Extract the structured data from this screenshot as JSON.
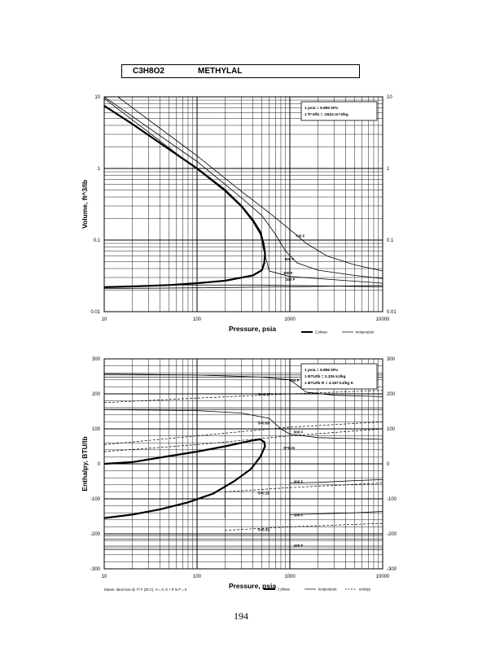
{
  "header": {
    "formula": "C3H8O2",
    "name": "METHYLAL"
  },
  "page_number": "194",
  "chart_data": [
    {
      "type": "line",
      "xscale": "log",
      "yscale": "log",
      "xlim": [
        10,
        10000
      ],
      "ylim": [
        0.01,
        10
      ],
      "xlabel": "Pressure, psia",
      "ylabel": "Volume, ft^3/lb",
      "x_ticks": [
        "10",
        "100",
        "1000",
        "10000"
      ],
      "y_ticks": [
        "0.01",
        "0.1",
        "1",
        "10"
      ],
      "info_box": [
        "1 psia = 6.895 kPa",
        "1 ft^3/lb = .0624 m^3/kg"
      ],
      "legend": [
        "2 phase",
        "temperature"
      ],
      "series": [
        {
          "name": "2 phase",
          "style": "thick",
          "points": [
            [
              10,
              7.5
            ],
            [
              20,
              4.2
            ],
            [
              50,
              1.85
            ],
            [
              100,
              1.0
            ],
            [
              200,
              0.5
            ],
            [
              300,
              0.3
            ],
            [
              400,
              0.19
            ],
            [
              480,
              0.13
            ],
            [
              520,
              0.09
            ],
            [
              540,
              0.065
            ],
            [
              530,
              0.048
            ],
            [
              500,
              0.038
            ],
            [
              400,
              0.032
            ],
            [
              200,
              0.027
            ],
            [
              100,
              0.025
            ],
            [
              50,
              0.0235
            ],
            [
              20,
              0.0225
            ],
            [
              10,
              0.022
            ]
          ]
        },
        {
          "name": "",
          "style": "thin",
          "points": [
            [
              10,
              0.021
            ],
            [
              100,
              0.0215
            ],
            [
              1000,
              0.0222
            ],
            [
              10000,
              0.0232
            ]
          ]
        },
        {
          "name": "",
          "style": "vline",
          "points": [
            [
              200,
              0.5
            ],
            [
              200,
              0.027
            ]
          ]
        },
        {
          "label": "100 F",
          "style": "thin",
          "points": [
            [
              50,
              0.0236
            ],
            [
              500,
              0.0235
            ],
            [
              1000,
              0.0232
            ],
            [
              10000,
              0.0222
            ]
          ]
        },
        {
          "label": "300 F",
          "style": "thin",
          "points": [
            [
              10,
              9.5
            ],
            [
              100,
              0.98
            ],
            [
              200,
              0.48
            ],
            [
              300,
              0.29
            ],
            [
              400,
              0.18
            ],
            [
              480,
              0.12
            ],
            [
              520,
              0.075
            ],
            [
              600,
              0.037
            ],
            [
              1000,
              0.031
            ],
            [
              10000,
              0.025
            ]
          ]
        },
        {
          "label": "500 F",
          "style": "thin",
          "points": [
            [
              10,
              10
            ],
            [
              100,
              1.25
            ],
            [
              300,
              0.39
            ],
            [
              500,
              0.22
            ],
            [
              700,
              0.12
            ],
            [
              900,
              0.07
            ],
            [
              1200,
              0.048
            ],
            [
              2000,
              0.038
            ],
            [
              5000,
              0.032
            ],
            [
              10000,
              0.029
            ]
          ]
        },
        {
          "label": "700 F",
          "style": "thin",
          "points": [
            [
              14,
              10
            ],
            [
              100,
              1.5
            ],
            [
              300,
              0.48
            ],
            [
              600,
              0.24
            ],
            [
              1000,
              0.14
            ],
            [
              1500,
              0.09
            ],
            [
              2500,
              0.06
            ],
            [
              5000,
              0.045
            ],
            [
              10000,
              0.037
            ]
          ]
        }
      ],
      "curve_labels": [
        {
          "text": "700 F",
          "x": 1150,
          "y": 0.115
        },
        {
          "text": "500 F",
          "x": 880,
          "y": 0.055
        },
        {
          "text": "300 F",
          "x": 850,
          "y": 0.035
        },
        {
          "text": "100 F",
          "x": 900,
          "y": 0.0285
        }
      ]
    },
    {
      "type": "line",
      "xscale": "log",
      "yscale": "linear",
      "xlim": [
        10,
        10000
      ],
      "ylim": [
        -300,
        300
      ],
      "xlabel": "Pressure, psia",
      "ylabel": "Enthalpy, BTU/lb",
      "x_ticks": [
        "10",
        "100",
        "1000",
        "10000"
      ],
      "y_ticks": [
        "300",
        "200",
        "100",
        "0",
        "-100",
        "-200",
        "-300"
      ],
      "info_box": [
        "1 psia = 6.895 kPa",
        "1 BTU/lb = 2.326 kJ/kg",
        "1 BTU/lb R = 4.187 kJ/kg K"
      ],
      "footnote": "Datum: Ideal Gas @ 77 F (25 C), H = 0, S + R ln P = 0",
      "legend": [
        "2 phase",
        "temperature",
        "entropy"
      ],
      "series": [
        {
          "name": "2 phase",
          "style": "thick",
          "points": [
            [
              10,
              0
            ],
            [
              20,
              5
            ],
            [
              50,
              22
            ],
            [
              100,
              35
            ],
            [
              200,
              50
            ],
            [
              300,
              60
            ],
            [
              400,
              67
            ],
            [
              480,
              70
            ],
            [
              530,
              62
            ],
            [
              540,
              50
            ],
            [
              480,
              20
            ],
            [
              380,
              -15
            ],
            [
              250,
              -50
            ],
            [
              150,
              -85
            ],
            [
              80,
              -110
            ],
            [
              40,
              -130
            ],
            [
              20,
              -145
            ],
            [
              10,
              -155
            ]
          ]
        },
        {
          "name": "",
          "style": "vline",
          "points": [
            [
              10,
              0
            ],
            [
              10,
              -155
            ]
          ]
        },
        {
          "name": "",
          "style": "vline",
          "points": [
            [
              200,
              50
            ],
            [
              200,
              -155
            ]
          ]
        },
        {
          "label": "700 F",
          "style": "thin",
          "points": [
            [
              10,
              257
            ],
            [
              100,
              254
            ],
            [
              500,
              248
            ],
            [
              1000,
              240
            ],
            [
              1200,
              225
            ],
            [
              1500,
              205
            ],
            [
              3000,
              196
            ],
            [
              10000,
              192
            ]
          ]
        },
        {
          "label": "500 F",
          "style": "thin",
          "points": [
            [
              10,
              155
            ],
            [
              100,
              152
            ],
            [
              300,
              145
            ],
            [
              600,
              130
            ],
            [
              800,
              100
            ],
            [
              1000,
              85
            ],
            [
              2000,
              75
            ],
            [
              10000,
              70
            ]
          ]
        },
        {
          "label": "300 F",
          "style": "thin",
          "points": [
            [
              1000,
              -55
            ],
            [
              2000,
              -53
            ],
            [
              5000,
              -48
            ],
            [
              10000,
              -45
            ]
          ]
        },
        {
          "label": "100 F",
          "style": "thin",
          "points": [
            [
              1000,
              -145
            ],
            [
              2000,
              -143
            ],
            [
              5000,
              -140
            ],
            [
              10000,
              -136
            ]
          ]
        },
        {
          "label": "S=-0.17",
          "style": "dashed",
          "points": [
            [
              10,
              175
            ],
            [
              100,
              188
            ],
            [
              1000,
              200
            ],
            [
              10000,
              210
            ]
          ]
        },
        {
          "label": "S=0.09",
          "style": "dashed",
          "points": [
            [
              10,
              55
            ],
            [
              100,
              80
            ],
            [
              1000,
              105
            ],
            [
              10000,
              120
            ]
          ]
        },
        {
          "label": "S=0.01",
          "style": "dashed",
          "points": [
            [
              10,
              35
            ],
            [
              100,
              55
            ],
            [
              1000,
              80
            ],
            [
              10000,
              100
            ]
          ]
        },
        {
          "label": "S=0.15",
          "style": "dashed",
          "points": [
            [
              200,
              -80
            ],
            [
              1000,
              -68
            ],
            [
              10000,
              -55
            ]
          ]
        },
        {
          "label": "S=0.32",
          "style": "dashed",
          "points": [
            [
              200,
              -190
            ],
            [
              1000,
              -180
            ],
            [
              10000,
              -170
            ]
          ]
        }
      ],
      "h_lines": [
        254,
        248,
        160,
        155,
        -205,
        -215,
        -235,
        -245
      ],
      "curve_labels": [
        {
          "text": "700 F",
          "x": 1000,
          "y": 240
        },
        {
          "text": "S=-0.17",
          "x": 450,
          "y": 200
        },
        {
          "text": "S=0.09",
          "x": 450,
          "y": 118
        },
        {
          "text": "500 F",
          "x": 1100,
          "y": 92
        },
        {
          "text": "S=0.01",
          "x": 850,
          "y": 47
        },
        {
          "text": "300 F",
          "x": 1100,
          "y": -50
        },
        {
          "text": "S=0.15",
          "x": 450,
          "y": -82
        },
        {
          "text": "100 F",
          "x": 1100,
          "y": -145
        },
        {
          "text": "S=0.32",
          "x": 450,
          "y": -187
        },
        {
          "text": "100 F",
          "x": 1100,
          "y": -233
        }
      ]
    }
  ]
}
